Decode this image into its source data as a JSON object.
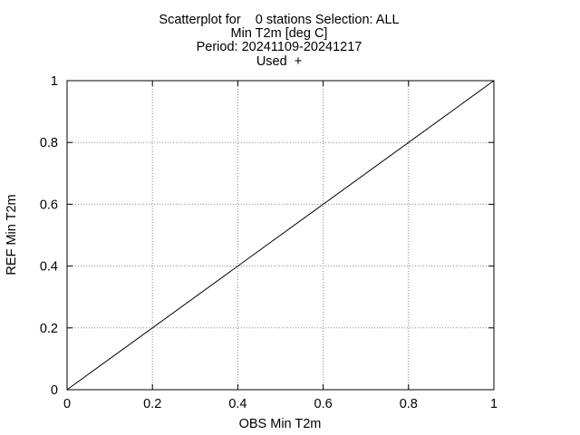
{
  "chart_data": {
    "type": "line",
    "title_lines": [
      "Scatterplot for    0 stations Selection: ALL",
      "Min T2m [deg C]",
      "Period: 20241109-20241217",
      "Used  +"
    ],
    "xlabel": "OBS Min T2m",
    "ylabel": "REF Min T2m",
    "xlim": [
      0,
      1
    ],
    "ylim": [
      0,
      1
    ],
    "x_ticks": [
      0,
      0.2,
      0.4,
      0.6,
      0.8,
      1
    ],
    "x_tick_labels": [
      "0",
      "0.2",
      "0.4",
      "0.6",
      "0.8",
      "1"
    ],
    "y_ticks": [
      0,
      0.2,
      0.4,
      0.6,
      0.8,
      1
    ],
    "y_tick_labels": [
      "0",
      "0.2",
      "0.4",
      "0.6",
      "0.8",
      "1"
    ],
    "grid": true,
    "series": [
      {
        "x": [
          0,
          1
        ],
        "y": [
          0,
          1
        ],
        "color": "#000000"
      }
    ],
    "points": []
  }
}
